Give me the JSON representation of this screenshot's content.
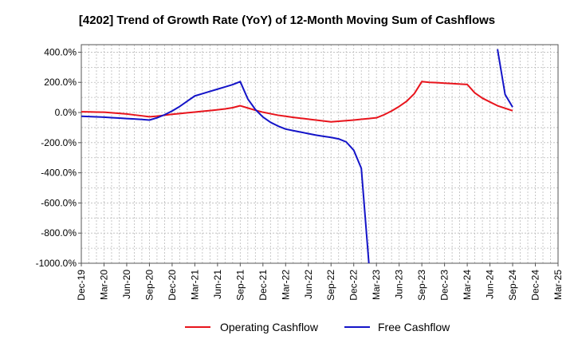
{
  "chart_data": {
    "type": "line",
    "title": "[4202]  Trend of Growth Rate (YoY) of 12-Month Moving Sum of Cashflows",
    "xlabel": "",
    "ylabel": "",
    "ylim": [
      -1000,
      450
    ],
    "y_ticks": [
      400,
      200,
      0,
      -200,
      -400,
      -600,
      -800,
      -1000
    ],
    "y_tick_labels": [
      "400.0%",
      "200.0%",
      "0.0%",
      "-200.0%",
      "-400.0%",
      "-600.0%",
      "-800.0%",
      "-1000.0%"
    ],
    "x_tick_labels": [
      "Dec-19",
      "Mar-20",
      "Jun-20",
      "Sep-20",
      "Dec-20",
      "Mar-21",
      "Jun-21",
      "Sep-21",
      "Dec-21",
      "Mar-22",
      "Jun-22",
      "Sep-22",
      "Dec-22",
      "Mar-23",
      "Jun-23",
      "Sep-23",
      "Dec-23",
      "Mar-24",
      "Jun-24",
      "Sep-24",
      "Dec-24",
      "Mar-25"
    ],
    "grid": true,
    "legend_position": "bottom",
    "series": [
      {
        "name": "Operating Cashflow",
        "color": "#e8141c",
        "x": [
          "Dec-19",
          "Jan-20",
          "Feb-20",
          "Mar-20",
          "Apr-20",
          "May-20",
          "Jun-20",
          "Jul-20",
          "Aug-20",
          "Sep-20",
          "Oct-20",
          "Nov-20",
          "Dec-20",
          "Jan-21",
          "Feb-21",
          "Mar-21",
          "Apr-21",
          "May-21",
          "Jun-21",
          "Jul-21",
          "Aug-21",
          "Sep-21",
          "Oct-21",
          "Nov-21",
          "Dec-21",
          "Jan-22",
          "Feb-22",
          "Mar-22",
          "Apr-22",
          "May-22",
          "Jun-22",
          "Jul-22",
          "Aug-22",
          "Sep-22",
          "Oct-22",
          "Nov-22",
          "Dec-22",
          "Jan-23",
          "Feb-23",
          "Mar-23",
          "Apr-23",
          "May-23",
          "Jun-23",
          "Jul-23",
          "Aug-23",
          "Sep-23",
          "Oct-23",
          "Nov-23",
          "Dec-23",
          "Jan-24",
          "Feb-24",
          "Mar-24",
          "Apr-24",
          "May-24",
          "Jun-24",
          "Jul-24",
          "Aug-24",
          "Sep-24"
        ],
        "values": [
          5,
          4,
          3,
          2,
          -2,
          -6,
          -10,
          -16,
          -22,
          -28,
          -24,
          -18,
          -12,
          -7,
          -2,
          3,
          8,
          13,
          18,
          24,
          32,
          45,
          30,
          15,
          2,
          -8,
          -18,
          -25,
          -32,
          -38,
          -44,
          -50,
          -56,
          -62,
          -58,
          -54,
          -50,
          -45,
          -40,
          -35,
          -15,
          10,
          40,
          75,
          125,
          205,
          200,
          198,
          195,
          192,
          189,
          186,
          130,
          95,
          70,
          45,
          28,
          12
        ]
      },
      {
        "name": "Free Cashflow",
        "color": "#1414c8",
        "x": [
          "Dec-19",
          "Jan-20",
          "Feb-20",
          "Mar-20",
          "Apr-20",
          "May-20",
          "Jun-20",
          "Jul-20",
          "Aug-20",
          "Sep-20",
          "Oct-20",
          "Nov-20",
          "Dec-20",
          "Jan-21",
          "Feb-21",
          "Mar-21",
          "Apr-21",
          "May-21",
          "Jun-21",
          "Jul-21",
          "Aug-21",
          "Sep-21",
          "Oct-21",
          "Nov-21",
          "Dec-21",
          "Jan-22",
          "Feb-22",
          "Mar-22",
          "Apr-22",
          "May-22",
          "Jun-22",
          "Jul-22",
          "Aug-22",
          "Sep-22",
          "Oct-22",
          "Nov-22",
          "Dec-22",
          "Jan-23",
          "Feb-23"
        ],
        "values": [
          -25,
          -27,
          -29,
          -31,
          -34,
          -37,
          -40,
          -43,
          -46,
          -50,
          -35,
          -15,
          10,
          40,
          75,
          110,
          125,
          140,
          155,
          170,
          185,
          205,
          90,
          20,
          -30,
          -65,
          -90,
          -110,
          -120,
          -130,
          -140,
          -150,
          -158,
          -165,
          -175,
          -195,
          -250,
          -370,
          -1000
        ],
        "segment2": {
          "x": [
            "Jul-24",
            "Aug-24",
            "Sep-24"
          ],
          "values": [
            420,
            120,
            35
          ]
        }
      }
    ]
  }
}
